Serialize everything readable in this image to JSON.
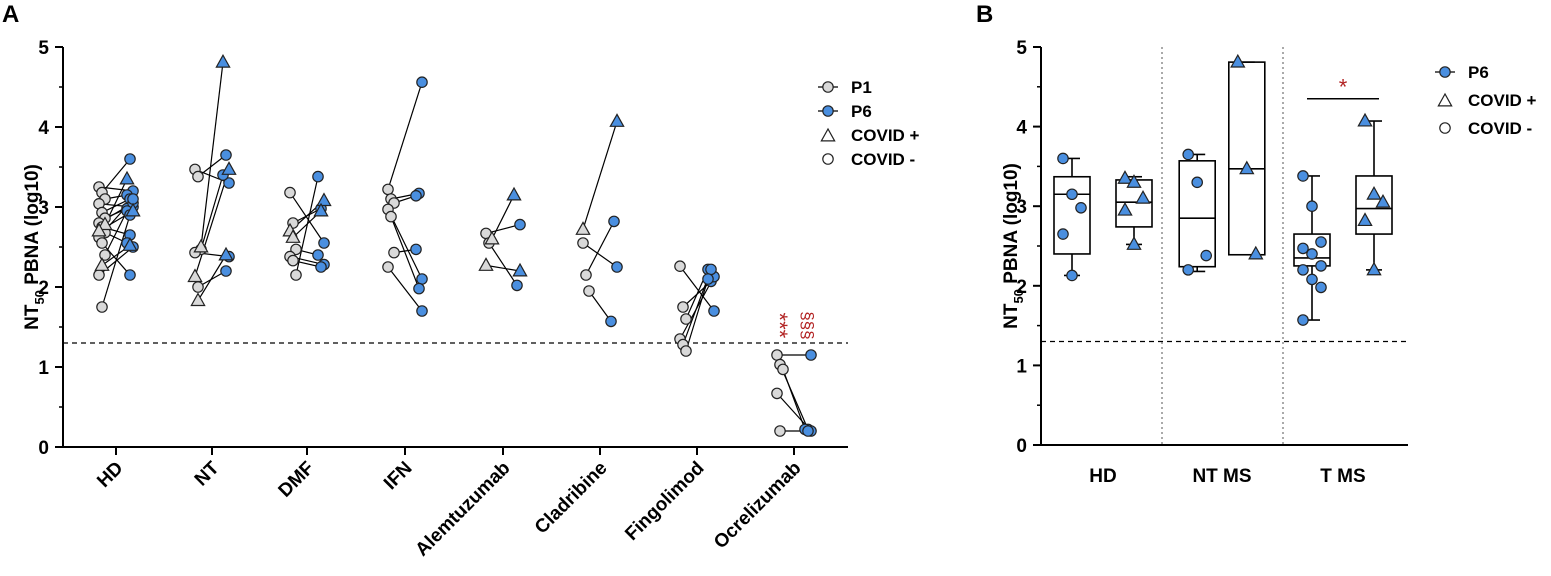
{
  "colors": {
    "p1": "#d9d9d9",
    "p6": "#4a8fe0",
    "stroke": "#222222",
    "sig": "#b22222"
  },
  "chart_data": [
    {
      "panel": "A",
      "type": "scatter",
      "ylabel_main": "NT",
      "ylabel_sub": "50",
      "ylabel_rest": " PBNA (log10)",
      "ylim": [
        0,
        5
      ],
      "yticks": [
        "0",
        "1",
        "2",
        "3",
        "4",
        "5"
      ],
      "cutoff": 1.3,
      "legend_position": "top-right",
      "legend": [
        {
          "label": "P1",
          "marker": "circle",
          "fill": "p1",
          "line": true
        },
        {
          "label": "P6",
          "marker": "circle",
          "fill": "p6",
          "line": true
        },
        {
          "label": "COVID +",
          "marker": "triangle",
          "fill": "none",
          "line": false
        },
        {
          "label": "COVID -",
          "marker": "circle",
          "fill": "none",
          "line": false
        }
      ],
      "significance": [
        {
          "group": "Ocrelizumab",
          "text": "***",
          "side": "P1",
          "y": 1.52
        },
        {
          "group": "Ocrelizumab",
          "text": "§§§",
          "side": "P6",
          "y": 1.52
        }
      ],
      "groups": [
        {
          "name": "HD",
          "pairs": [
            [
              "c",
              3.25,
              3.2
            ],
            [
              "c",
              3.18,
              3.6
            ],
            [
              "c",
              3.1,
              3.15
            ],
            [
              "c",
              3.04,
              3.0
            ],
            [
              "c",
              2.93,
              3.1
            ],
            [
              "c",
              2.86,
              2.98
            ],
            [
              "c",
              2.8,
              3.05
            ],
            [
              "c",
              2.75,
              2.65
            ],
            [
              "c",
              2.68,
              2.55
            ],
            [
              "c",
              2.62,
              3.1
            ],
            [
              "c",
              2.55,
              2.15
            ],
            [
              "c",
              2.4,
              2.95
            ],
            [
              "c",
              2.15,
              2.5
            ],
            [
              "c",
              1.75,
              2.9
            ],
            [
              "t",
              2.78,
              3.35
            ],
            [
              "t",
              2.7,
              2.95
            ],
            [
              "t",
              2.27,
              2.52
            ]
          ]
        },
        {
          "name": "NT",
          "pairs": [
            [
              "c",
              3.47,
              3.3
            ],
            [
              "c",
              3.38,
              3.65
            ],
            [
              "c",
              2.47,
              3.4
            ],
            [
              "c",
              2.43,
              2.38
            ],
            [
              "c",
              2.0,
              2.2
            ],
            [
              "t",
              2.5,
              4.81
            ],
            [
              "t",
              2.13,
              3.47
            ],
            [
              "t",
              1.83,
              2.4
            ]
          ]
        },
        {
          "name": "DMF",
          "pairs": [
            [
              "c",
              3.18,
              2.55
            ],
            [
              "c",
              2.8,
              2.98
            ],
            [
              "c",
              2.47,
              2.4
            ],
            [
              "c",
              2.38,
              2.28
            ],
            [
              "c",
              2.33,
              2.25
            ],
            [
              "c",
              2.15,
              3.38
            ],
            [
              "t",
              2.7,
              3.08
            ],
            [
              "t",
              2.62,
              2.95
            ]
          ]
        },
        {
          "name": "IFN",
          "pairs": [
            [
              "c",
              3.22,
              4.56
            ],
            [
              "c",
              3.1,
              3.17
            ],
            [
              "c",
              3.05,
              3.14
            ],
            [
              "c",
              2.97,
              2.1
            ],
            [
              "c",
              2.88,
              1.98
            ],
            [
              "c",
              2.43,
              2.47
            ],
            [
              "c",
              2.25,
              1.7
            ]
          ]
        },
        {
          "name": "Alemtuzumab",
          "pairs": [
            [
              "c",
              2.67,
              2.78
            ],
            [
              "c",
              2.55,
              2.02
            ],
            [
              "t",
              2.6,
              3.15
            ],
            [
              "t",
              2.27,
              2.2
            ]
          ]
        },
        {
          "name": "Cladribine",
          "pairs": [
            [
              "c",
              2.55,
              2.25
            ],
            [
              "c",
              2.15,
              2.82
            ],
            [
              "c",
              1.95,
              1.57
            ],
            [
              "t",
              2.72,
              4.07
            ]
          ]
        },
        {
          "name": "Fingolimod",
          "pairs": [
            [
              "c",
              2.26,
              1.7
            ],
            [
              "c",
              1.75,
              2.07
            ],
            [
              "c",
              1.6,
              2.22
            ],
            [
              "c",
              1.35,
              2.13
            ],
            [
              "c",
              1.28,
              2.22
            ],
            [
              "c",
              1.2,
              2.1
            ]
          ]
        },
        {
          "name": "Ocrelizumab",
          "pairs": [
            [
              "c",
              1.15,
              1.15
            ],
            [
              "c",
              1.03,
              0.22
            ],
            [
              "c",
              0.97,
              0.22
            ],
            [
              "c",
              0.67,
              0.2
            ],
            [
              "c",
              0.2,
              0.2
            ]
          ]
        }
      ]
    },
    {
      "panel": "B",
      "type": "box",
      "ylabel_main": "NT",
      "ylabel_sub": "50",
      "ylabel_rest": " PBNA (log10)",
      "ylim": [
        0,
        5
      ],
      "yticks": [
        "0",
        "1",
        "2",
        "3",
        "4",
        "5"
      ],
      "cutoff": 1.3,
      "categories": [
        "HD",
        "NT MS",
        "T MS"
      ],
      "legend_position": "top-right",
      "legend": [
        {
          "label": "P6",
          "marker": "circle",
          "fill": "p6",
          "line": true
        },
        {
          "label": "COVID +",
          "marker": "triangle",
          "fill": "none",
          "line": false
        },
        {
          "label": "COVID -",
          "marker": "circle",
          "fill": "none",
          "line": false
        }
      ],
      "significance": [
        {
          "text": "*",
          "group": "T MS",
          "y": 4.35
        }
      ],
      "boxes": [
        {
          "category": "HD",
          "series": "COVID -",
          "min": 2.13,
          "q1": 2.4,
          "median": 3.15,
          "q3": 3.37,
          "max": 3.6,
          "points": [
            3.6,
            3.15,
            2.98,
            2.65,
            2.13
          ]
        },
        {
          "category": "HD",
          "series": "COVID +",
          "min": 2.52,
          "q1": 2.74,
          "median": 3.05,
          "q3": 3.33,
          "max": 3.37,
          "points": [
            3.35,
            3.3,
            3.1,
            2.95,
            2.52
          ]
        },
        {
          "category": "NT MS",
          "series": "COVID -",
          "min": 2.18,
          "q1": 2.24,
          "median": 2.85,
          "q3": 3.57,
          "max": 3.65,
          "points": [
            3.65,
            3.3,
            2.38,
            2.2
          ]
        },
        {
          "category": "NT MS",
          "series": "COVID +",
          "min": 2.39,
          "q1": 2.39,
          "median": 3.47,
          "q3": 4.81,
          "max": 4.81,
          "points": [
            4.81,
            3.47,
            2.4
          ]
        },
        {
          "category": "T MS",
          "series": "COVID -",
          "min": 1.57,
          "q1": 2.25,
          "median": 2.35,
          "q3": 2.65,
          "max": 3.38,
          "points": [
            3.38,
            3.0,
            2.55,
            2.47,
            2.4,
            2.25,
            2.2,
            2.08,
            1.98,
            1.57
          ]
        },
        {
          "category": "T MS",
          "series": "COVID +",
          "min": 2.2,
          "q1": 2.65,
          "median": 2.97,
          "q3": 3.38,
          "max": 4.07,
          "points": [
            4.07,
            3.15,
            3.05,
            2.82,
            2.2
          ]
        }
      ]
    }
  ]
}
